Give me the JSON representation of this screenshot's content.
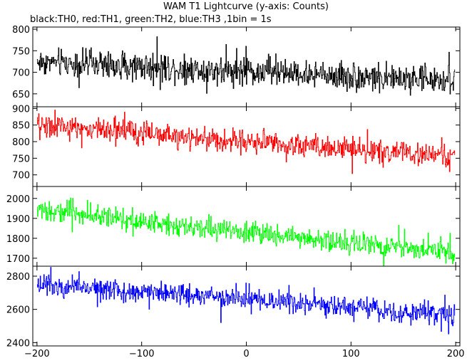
{
  "title": "WAM T1 Lightcurve (y-axis: Counts)",
  "subtitle": "black:TH0, red:TH1, green:TH2, blue:TH3 ,1bin = 1s",
  "chart_data": {
    "type": "line",
    "title": "WAM T1 Lightcurve (y-axis: Counts)",
    "subtitle": "black:TH0, red:TH1, green:TH2, blue:TH3 ,1bin = 1s",
    "xlabel": "",
    "xlim": [
      -204,
      204
    ],
    "x_ticks": [
      -200,
      -100,
      0,
      100,
      200
    ],
    "x_tick_labels": [
      "−200",
      "−100",
      "0",
      "100",
      "200"
    ],
    "grid": false,
    "bin_seconds": 1,
    "panels": [
      {
        "series": "TH0",
        "color": "#000000",
        "ylim": [
          620,
          805
        ],
        "y_ticks": [
          650,
          700,
          750,
          800
        ],
        "trend_start": 725,
        "trend_end": 680,
        "noise_amplitude": 28,
        "spike_amplitude": 55
      },
      {
        "series": "TH1",
        "color": "#ff0000",
        "ylim": [
          665,
          905
        ],
        "y_ticks": [
          700,
          750,
          800,
          850,
          900
        ],
        "trend_start": 850,
        "trend_end": 755,
        "noise_amplitude": 30,
        "spike_amplitude": 55
      },
      {
        "series": "TH2",
        "color": "#00ff00",
        "ylim": [
          1660,
          2060
        ],
        "y_ticks": [
          1700,
          1800,
          1900,
          2000
        ],
        "trend_start": 1945,
        "trend_end": 1725,
        "noise_amplitude": 45,
        "spike_amplitude": 85
      },
      {
        "series": "TH3",
        "color": "#0000ff",
        "ylim": [
          2380,
          2860
        ],
        "y_ticks": [
          2400,
          2600,
          2800
        ],
        "trend_start": 2760,
        "trend_end": 2560,
        "noise_amplitude": 55,
        "spike_amplitude": 110
      }
    ]
  }
}
